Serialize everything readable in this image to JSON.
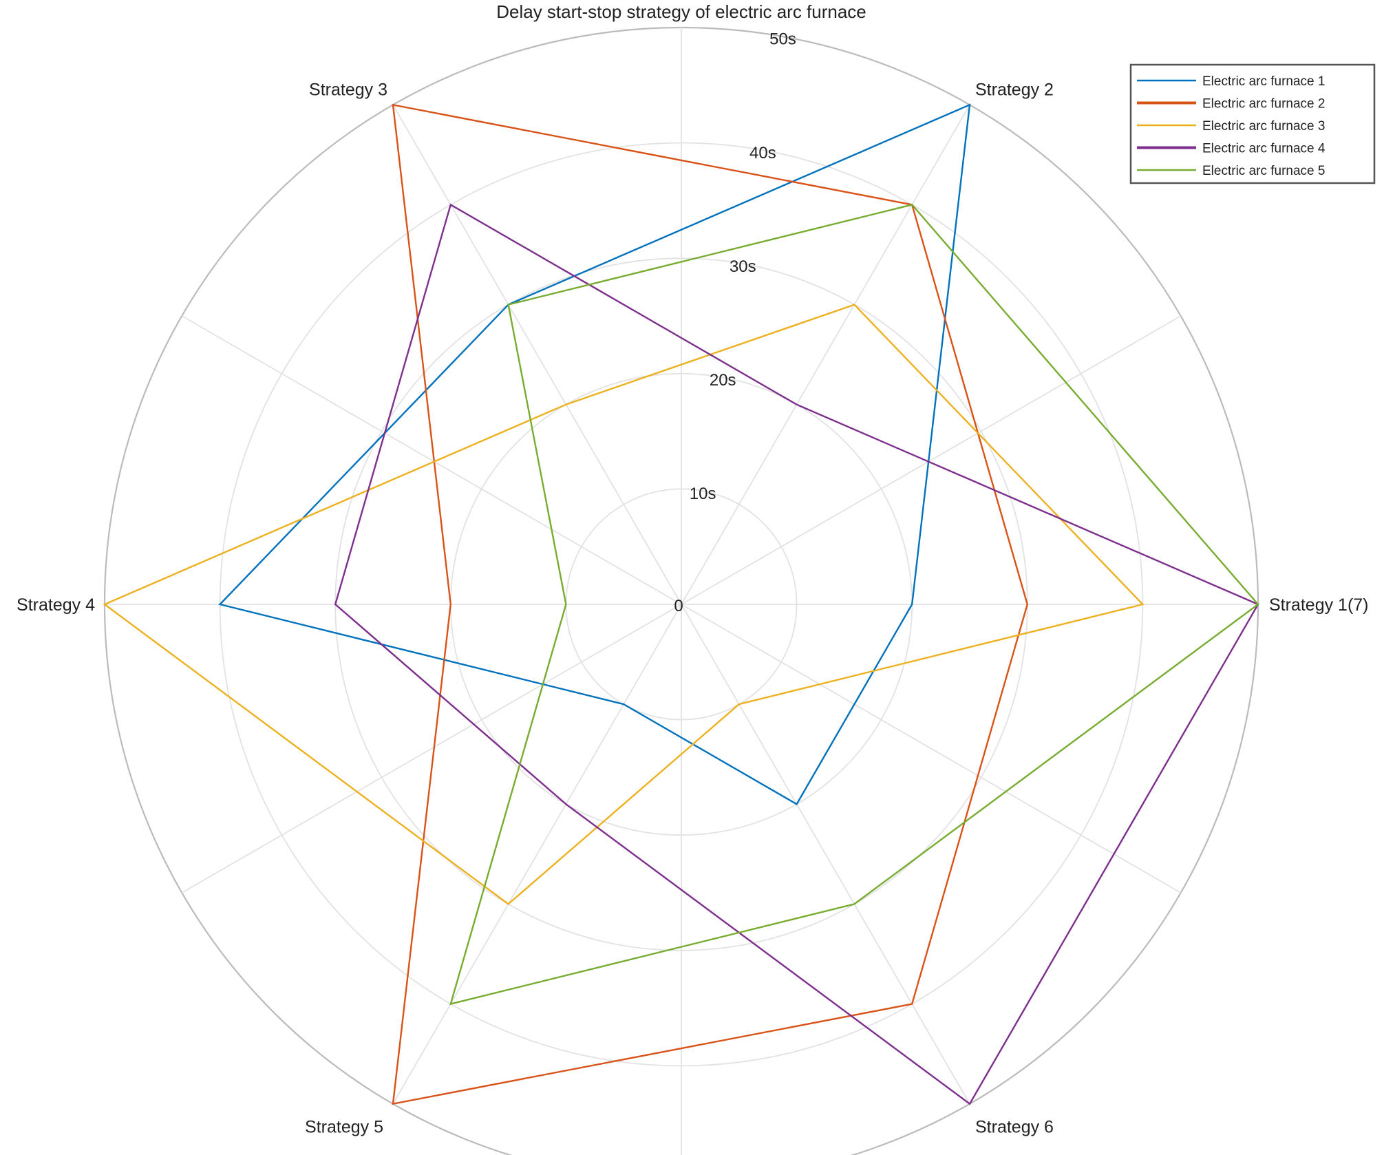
{
  "chart_data": {
    "type": "radar",
    "title": "Delay start-stop strategy of electric arc furnace",
    "categories": [
      "Strategy 1(7)",
      "Strategy 2",
      "Strategy 3",
      "Strategy 4",
      "Strategy 5",
      "Strategy 6"
    ],
    "radial_ticks": [
      "0",
      "10s",
      "20s",
      "30s",
      "40s",
      "50s"
    ],
    "rlim": [
      0,
      50
    ],
    "grid": true,
    "legend_position": "top-right",
    "series": [
      {
        "name": "Electric arc furnace 1",
        "color": "#0072BD",
        "values": [
          20,
          50,
          30,
          40,
          10,
          20
        ]
      },
      {
        "name": "Electric arc furnace 2",
        "color": "#D95319",
        "values": [
          30,
          40,
          50,
          20,
          50,
          40
        ]
      },
      {
        "name": "Electric arc furnace 3",
        "color": "#EDB120",
        "values": [
          40,
          30,
          20,
          50,
          30,
          10
        ]
      },
      {
        "name": "Electric arc furnace 4",
        "color": "#7E2F8E",
        "values": [
          50,
          20,
          40,
          30,
          20,
          50
        ]
      },
      {
        "name": "Electric arc furnace 5",
        "color": "#77AC30",
        "values": [
          50,
          40,
          30,
          10,
          40,
          30
        ]
      }
    ]
  }
}
